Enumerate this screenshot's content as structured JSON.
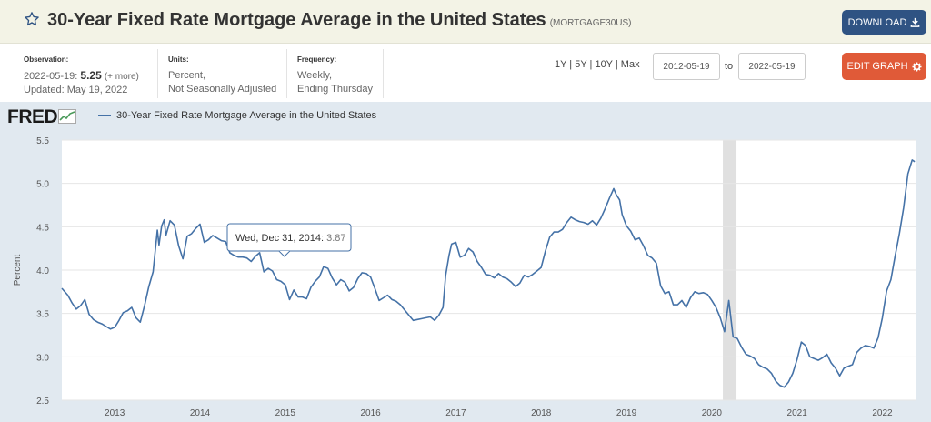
{
  "header": {
    "title": "30-Year Fixed Rate Mortgage Average in the United States",
    "series_id": "(MORTGAGE30US)",
    "download_label": "DOWNLOAD"
  },
  "observation": {
    "label": "Observation:",
    "date": "2022-05-19:",
    "value": "5.25",
    "more": "(+ more)",
    "updated": "Updated: May 19, 2022"
  },
  "units": {
    "label": "Units:",
    "line1": "Percent,",
    "line2": "Not Seasonally Adjusted"
  },
  "frequency": {
    "label": "Frequency:",
    "line1": "Weekly,",
    "line2": "Ending Thursday"
  },
  "ranges": "1Y | 5Y | 10Y | Max",
  "date_start": "2012-05-19",
  "date_to": "to",
  "date_end": "2022-05-19",
  "edit_label": "EDIT GRAPH",
  "logo": "FRED",
  "colors": {
    "accent": "#4572a7",
    "download": "#2f5383",
    "edit": "#e05a38",
    "plot_bg": "#e1e9f0"
  },
  "tooltip": {
    "date": "Wed, Dec 31, 2014:",
    "value": "3.87"
  },
  "chart_data": {
    "type": "line",
    "title": "",
    "ylabel": "Percent",
    "xlabel": "",
    "ylim": [
      2.5,
      5.5
    ],
    "xlim": [
      2012.38,
      2022.4
    ],
    "yticks": [
      "2.5",
      "3.0",
      "3.5",
      "4.0",
      "4.5",
      "5.0",
      "5.5"
    ],
    "xticks": [
      "2013",
      "2014",
      "2015",
      "2016",
      "2017",
      "2018",
      "2019",
      "2020",
      "2021",
      "2022"
    ],
    "recession": [
      2020.13,
      2020.29
    ],
    "grid": true,
    "series": [
      {
        "name": "30-Year Fixed Rate Mortgage Average in the United States",
        "x": [
          2012.38,
          2012.45,
          2012.5,
          2012.55,
          2012.6,
          2012.65,
          2012.7,
          2012.75,
          2012.8,
          2012.85,
          2012.9,
          2012.95,
          2013.0,
          2013.05,
          2013.1,
          2013.15,
          2013.2,
          2013.25,
          2013.3,
          2013.35,
          2013.4,
          2013.45,
          2013.5,
          2013.52,
          2013.55,
          2013.58,
          2013.6,
          2013.65,
          2013.7,
          2013.75,
          2013.8,
          2013.85,
          2013.9,
          2013.95,
          2014.0,
          2014.05,
          2014.1,
          2014.15,
          2014.2,
          2014.25,
          2014.3,
          2014.35,
          2014.4,
          2014.45,
          2014.5,
          2014.55,
          2014.6,
          2014.65,
          2014.7,
          2014.75,
          2014.8,
          2014.85,
          2014.9,
          2014.95,
          2015.0,
          2015.05,
          2015.1,
          2015.15,
          2015.2,
          2015.25,
          2015.3,
          2015.35,
          2015.4,
          2015.45,
          2015.5,
          2015.55,
          2015.6,
          2015.65,
          2015.7,
          2015.75,
          2015.8,
          2015.85,
          2015.9,
          2015.95,
          2016.0,
          2016.05,
          2016.1,
          2016.15,
          2016.2,
          2016.25,
          2016.3,
          2016.35,
          2016.4,
          2016.45,
          2016.5,
          2016.55,
          2016.6,
          2016.65,
          2016.7,
          2016.75,
          2016.8,
          2016.85,
          2016.88,
          2016.92,
          2016.95,
          2017.0,
          2017.05,
          2017.1,
          2017.15,
          2017.2,
          2017.25,
          2017.3,
          2017.35,
          2017.4,
          2017.45,
          2017.5,
          2017.55,
          2017.6,
          2017.65,
          2017.7,
          2017.75,
          2017.8,
          2017.85,
          2017.9,
          2017.95,
          2018.0,
          2018.05,
          2018.1,
          2018.15,
          2018.2,
          2018.25,
          2018.3,
          2018.35,
          2018.4,
          2018.45,
          2018.5,
          2018.55,
          2018.6,
          2018.65,
          2018.7,
          2018.75,
          2018.8,
          2018.85,
          2018.88,
          2018.92,
          2018.95,
          2019.0,
          2019.05,
          2019.1,
          2019.15,
          2019.2,
          2019.25,
          2019.3,
          2019.35,
          2019.4,
          2019.45,
          2019.5,
          2019.55,
          2019.6,
          2019.65,
          2019.7,
          2019.75,
          2019.8,
          2019.85,
          2019.9,
          2019.95,
          2020.0,
          2020.05,
          2020.1,
          2020.15,
          2020.2,
          2020.25,
          2020.3,
          2020.35,
          2020.4,
          2020.45,
          2020.5,
          2020.55,
          2020.6,
          2020.65,
          2020.7,
          2020.75,
          2020.8,
          2020.85,
          2020.9,
          2020.95,
          2021.0,
          2021.05,
          2021.1,
          2021.15,
          2021.2,
          2021.25,
          2021.3,
          2021.35,
          2021.4,
          2021.45,
          2021.5,
          2021.55,
          2021.6,
          2021.65,
          2021.7,
          2021.75,
          2021.8,
          2021.85,
          2021.9,
          2021.95,
          2022.0,
          2022.05,
          2022.1,
          2022.15,
          2022.2,
          2022.25,
          2022.3,
          2022.35,
          2022.38
        ],
        "values": [
          3.79,
          3.71,
          3.62,
          3.55,
          3.59,
          3.66,
          3.49,
          3.43,
          3.4,
          3.38,
          3.35,
          3.32,
          3.34,
          3.42,
          3.51,
          3.53,
          3.57,
          3.45,
          3.4,
          3.59,
          3.81,
          3.98,
          4.46,
          4.29,
          4.51,
          4.58,
          4.4,
          4.57,
          4.52,
          4.28,
          4.13,
          4.39,
          4.42,
          4.48,
          4.53,
          4.32,
          4.35,
          4.4,
          4.37,
          4.34,
          4.33,
          4.2,
          4.17,
          4.15,
          4.15,
          4.14,
          4.1,
          4.16,
          4.2,
          3.98,
          4.02,
          3.99,
          3.89,
          3.87,
          3.83,
          3.66,
          3.77,
          3.69,
          3.69,
          3.67,
          3.8,
          3.87,
          3.92,
          4.04,
          4.02,
          3.91,
          3.83,
          3.89,
          3.86,
          3.76,
          3.8,
          3.9,
          3.97,
          3.96,
          3.92,
          3.79,
          3.65,
          3.68,
          3.71,
          3.66,
          3.64,
          3.6,
          3.54,
          3.48,
          3.42,
          3.43,
          3.44,
          3.45,
          3.46,
          3.42,
          3.48,
          3.57,
          3.94,
          4.17,
          4.3,
          4.32,
          4.15,
          4.17,
          4.25,
          4.21,
          4.1,
          4.03,
          3.95,
          3.94,
          3.91,
          3.96,
          3.92,
          3.9,
          3.86,
          3.81,
          3.85,
          3.94,
          3.92,
          3.95,
          3.99,
          4.03,
          4.22,
          4.38,
          4.44,
          4.44,
          4.47,
          4.55,
          4.61,
          4.58,
          4.56,
          4.55,
          4.53,
          4.57,
          4.52,
          4.6,
          4.71,
          4.83,
          4.94,
          4.87,
          4.81,
          4.64,
          4.51,
          4.45,
          4.35,
          4.37,
          4.28,
          4.17,
          4.14,
          4.08,
          3.82,
          3.73,
          3.75,
          3.6,
          3.6,
          3.65,
          3.57,
          3.68,
          3.75,
          3.73,
          3.74,
          3.72,
          3.65,
          3.57,
          3.45,
          3.29,
          3.65,
          3.23,
          3.21,
          3.11,
          3.03,
          3.01,
          2.98,
          2.91,
          2.88,
          2.86,
          2.81,
          2.72,
          2.67,
          2.65,
          2.71,
          2.81,
          2.97,
          3.17,
          3.13,
          3.0,
          2.98,
          2.96,
          2.99,
          3.03,
          2.93,
          2.87,
          2.78,
          2.87,
          2.89,
          2.91,
          3.05,
          3.1,
          3.13,
          3.12,
          3.1,
          3.22,
          3.45,
          3.76,
          3.89,
          4.16,
          4.42,
          4.72,
          5.11,
          5.27,
          5.25
        ]
      }
    ]
  }
}
